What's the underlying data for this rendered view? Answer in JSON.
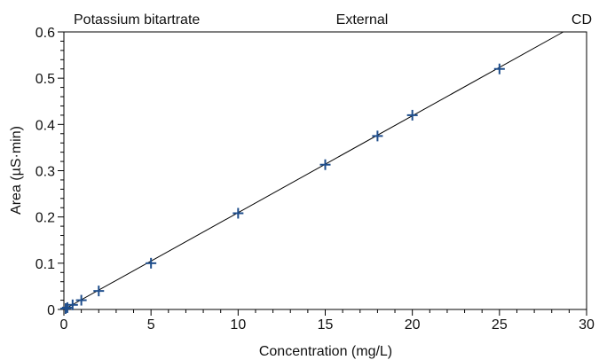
{
  "header": {
    "left": "Potassium bitartrate",
    "center": "External",
    "right": "CD"
  },
  "chart_data": {
    "type": "scatter",
    "title": "",
    "xlabel": "Concentration (mg/L)",
    "ylabel": "Area (µS·min)",
    "xlim": [
      0,
      30
    ],
    "ylim": [
      0,
      0.6
    ],
    "xticks": [
      0,
      5,
      10,
      15,
      20,
      25,
      30
    ],
    "xtick_labels": [
      "0",
      "5",
      "10",
      "15",
      "20",
      "25",
      "30"
    ],
    "yticks": [
      0,
      0.1,
      0.2,
      0.3,
      0.4,
      0.5,
      0.6
    ],
    "ytick_labels": [
      "0",
      "0.1",
      "0.2",
      "0.3",
      "0.4",
      "0.5",
      "0.6"
    ],
    "grid": false,
    "marker_color": "#1f4e8c",
    "line_color": "#000000",
    "series": [
      {
        "x": [
          0.1,
          0.2,
          0.5,
          1,
          2,
          5,
          10,
          15,
          18,
          20,
          25
        ],
        "y": [
          0.002,
          0.004,
          0.01,
          0.02,
          0.04,
          0.1,
          0.208,
          0.313,
          0.375,
          0.42,
          0.52
        ]
      }
    ],
    "fit_line": {
      "x": [
        0,
        30
      ],
      "y": [
        0,
        0.628
      ]
    }
  }
}
